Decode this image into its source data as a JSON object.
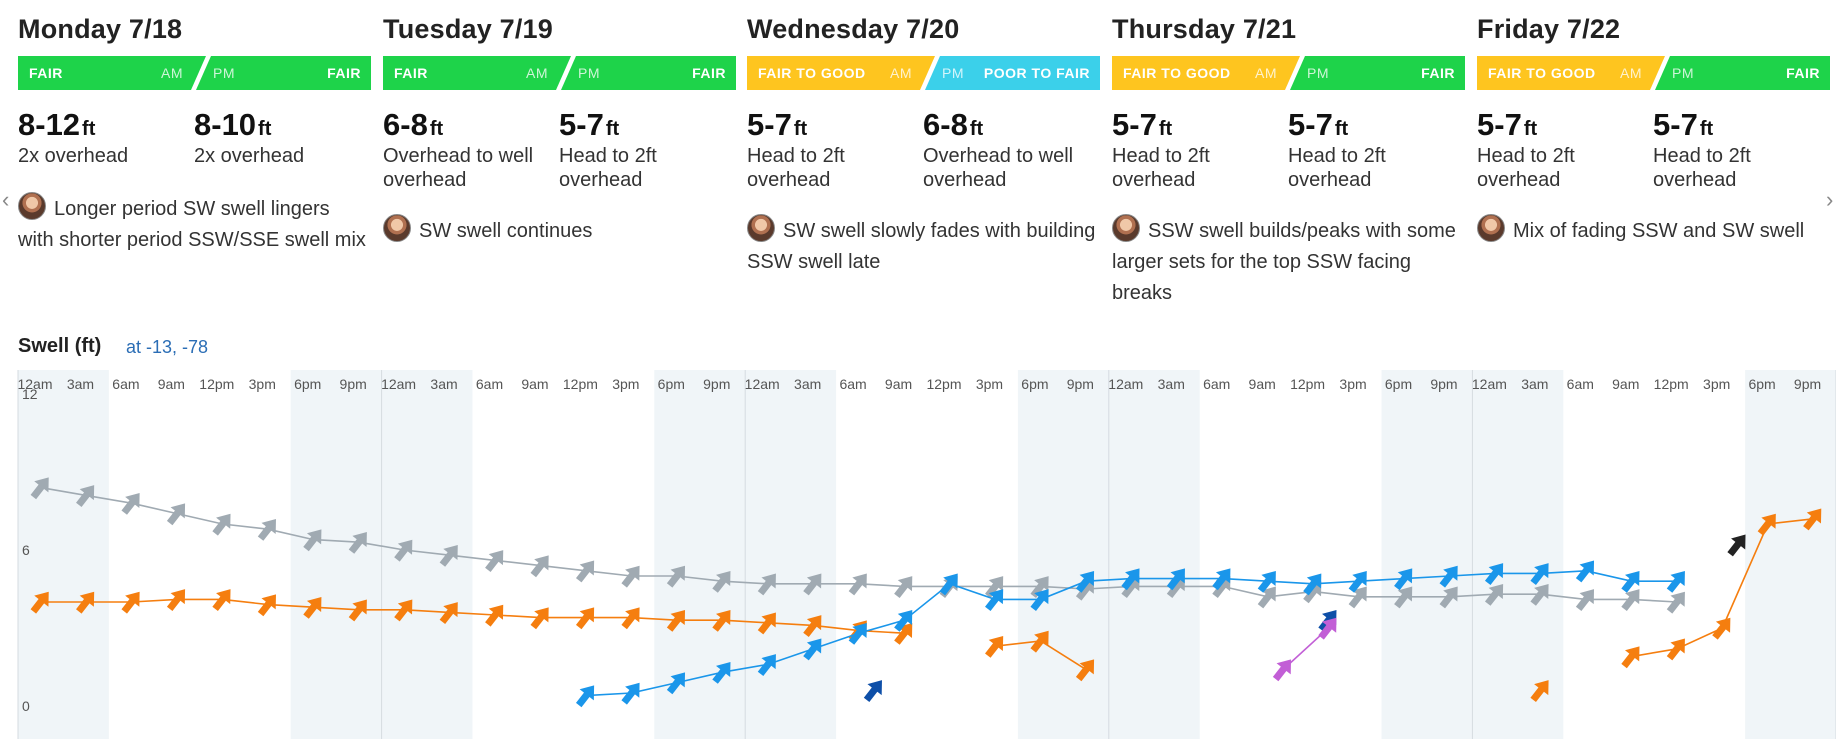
{
  "days": [
    {
      "title": "Monday 7/18",
      "am": {
        "rating": "FAIR",
        "color": "#1ed34a",
        "height": "8-12",
        "desc": "2x overhead"
      },
      "pm": {
        "rating": "FAIR",
        "color": "#1ed34a",
        "height": "8-10",
        "desc": "2x overhead"
      },
      "note": "Longer period SW swell lingers with shorter period SSW/SSE swell mix"
    },
    {
      "title": "Tuesday 7/19",
      "am": {
        "rating": "FAIR",
        "color": "#1ed34a",
        "height": "6-8",
        "desc": "Overhead to well overhead"
      },
      "pm": {
        "rating": "FAIR",
        "color": "#1ed34a",
        "height": "5-7",
        "desc": "Head to 2ft overhead"
      },
      "note": "SW swell continues"
    },
    {
      "title": "Wednesday 7/20",
      "am": {
        "rating": "FAIR TO GOOD",
        "color": "#fec51f",
        "height": "5-7",
        "desc": "Head to 2ft overhead"
      },
      "pm": {
        "rating": "POOR TO FAIR",
        "color": "#3bd0ea",
        "height": "6-8",
        "desc": "Overhead to well overhead"
      },
      "note": "SW swell slowly fades with building SSW swell late"
    },
    {
      "title": "Thursday 7/21",
      "am": {
        "rating": "FAIR TO GOOD",
        "color": "#fec51f",
        "height": "5-7",
        "desc": "Head to 2ft overhead"
      },
      "pm": {
        "rating": "FAIR",
        "color": "#1ed34a",
        "height": "5-7",
        "desc": "Head to 2ft overhead"
      },
      "note": "SSW swell builds/peaks with some larger sets for the top SSW facing breaks"
    },
    {
      "title": "Friday 7/22",
      "am": {
        "rating": "FAIR TO GOOD",
        "color": "#fec51f",
        "height": "5-7",
        "desc": "Head to 2ft overhead"
      },
      "pm": {
        "rating": "FAIR",
        "color": "#1ed34a",
        "height": "5-7",
        "desc": "Head to 2ft overhead"
      },
      "note": "Mix of fading SSW and SW swell"
    }
  ],
  "labels": {
    "am": "AM",
    "pm": "PM",
    "unit": "ft"
  },
  "swell": {
    "title": "Swell (ft)",
    "location": "at -13, -78"
  },
  "chart_data": {
    "type": "scatter",
    "title": "Swell (ft)",
    "ylabel": "",
    "ylim": [
      0,
      12
    ],
    "yticks": [
      0,
      6,
      12
    ],
    "x_tick_labels": [
      "12am",
      "3am",
      "6am",
      "9am",
      "12pm",
      "3pm",
      "6pm",
      "9pm"
    ],
    "x_range_hours": [
      0,
      120
    ],
    "series": [
      {
        "color": "#a0aab2",
        "line": true,
        "points": [
          [
            1.5,
            8.4
          ],
          [
            4.5,
            8.1
          ],
          [
            7.5,
            7.8
          ],
          [
            10.5,
            7.4
          ],
          [
            13.5,
            7.0
          ],
          [
            16.5,
            6.8
          ],
          [
            19.5,
            6.4
          ],
          [
            22.5,
            6.3
          ],
          [
            25.5,
            6.0
          ],
          [
            28.5,
            5.8
          ],
          [
            31.5,
            5.6
          ],
          [
            34.5,
            5.4
          ],
          [
            37.5,
            5.2
          ],
          [
            40.5,
            5.0
          ],
          [
            43.5,
            5.0
          ],
          [
            46.5,
            4.8
          ],
          [
            49.5,
            4.7
          ],
          [
            52.5,
            4.7
          ],
          [
            55.5,
            4.7
          ],
          [
            58.5,
            4.6
          ],
          [
            61.5,
            4.6
          ],
          [
            64.5,
            4.6
          ],
          [
            67.5,
            4.6
          ],
          [
            70.5,
            4.5
          ],
          [
            73.5,
            4.6
          ],
          [
            76.5,
            4.6
          ],
          [
            79.5,
            4.6
          ],
          [
            82.5,
            4.2
          ],
          [
            85.5,
            4.4
          ],
          [
            88.5,
            4.2
          ],
          [
            91.5,
            4.2
          ],
          [
            94.5,
            4.2
          ],
          [
            97.5,
            4.3
          ],
          [
            100.5,
            4.3
          ],
          [
            103.5,
            4.1
          ],
          [
            106.5,
            4.1
          ],
          [
            109.5,
            4.0
          ]
        ]
      },
      {
        "color": "#f57e0f",
        "line": true,
        "points": [
          [
            1.5,
            4.0
          ],
          [
            4.5,
            4.0
          ],
          [
            7.5,
            4.0
          ],
          [
            10.5,
            4.1
          ],
          [
            13.5,
            4.1
          ],
          [
            16.5,
            3.9
          ],
          [
            19.5,
            3.8
          ],
          [
            22.5,
            3.7
          ],
          [
            25.5,
            3.7
          ],
          [
            28.5,
            3.6
          ],
          [
            31.5,
            3.5
          ],
          [
            34.5,
            3.4
          ],
          [
            37.5,
            3.4
          ],
          [
            40.5,
            3.4
          ],
          [
            43.5,
            3.3
          ],
          [
            46.5,
            3.3
          ],
          [
            49.5,
            3.2
          ],
          [
            52.5,
            3.1
          ],
          [
            55.5,
            2.9
          ],
          [
            58.5,
            2.8
          ]
        ]
      },
      {
        "color": "#f57e0f",
        "line": true,
        "points": [
          [
            64.5,
            2.3
          ],
          [
            67.5,
            2.5
          ],
          [
            70.5,
            1.4
          ]
        ]
      },
      {
        "color": "#f57e0f",
        "line": false,
        "points": [
          [
            100.5,
            0.6
          ]
        ]
      },
      {
        "color": "#f57e0f",
        "line": true,
        "points": [
          [
            106.5,
            1.9
          ],
          [
            109.5,
            2.2
          ],
          [
            112.5,
            3.0
          ],
          [
            115.5,
            7.0
          ],
          [
            118.5,
            7.2
          ]
        ]
      },
      {
        "color": "#1a96ea",
        "line": true,
        "points": [
          [
            37.5,
            0.4
          ],
          [
            40.5,
            0.5
          ],
          [
            43.5,
            0.9
          ],
          [
            46.5,
            1.3
          ],
          [
            49.5,
            1.6
          ],
          [
            52.5,
            2.2
          ],
          [
            55.5,
            2.8
          ],
          [
            58.5,
            3.3
          ],
          [
            61.5,
            4.7
          ],
          [
            64.5,
            4.1
          ],
          [
            67.5,
            4.1
          ],
          [
            70.5,
            4.8
          ],
          [
            73.5,
            4.9
          ],
          [
            76.5,
            4.9
          ],
          [
            79.5,
            4.9
          ],
          [
            82.5,
            4.8
          ],
          [
            85.5,
            4.7
          ],
          [
            88.5,
            4.8
          ],
          [
            91.5,
            4.9
          ],
          [
            94.5,
            5.0
          ],
          [
            97.5,
            5.1
          ],
          [
            100.5,
            5.1
          ],
          [
            103.5,
            5.2
          ],
          [
            106.5,
            4.8
          ],
          [
            109.5,
            4.8
          ]
        ]
      },
      {
        "color": "#0e4fa8",
        "line": false,
        "points": [
          [
            56.5,
            0.6
          ]
        ]
      },
      {
        "color": "#0e4fa8",
        "line": false,
        "points": [
          [
            86.5,
            3.3
          ]
        ]
      },
      {
        "color": "#c25fd6",
        "line": true,
        "points": [
          [
            83.5,
            1.4
          ],
          [
            86.5,
            3.0
          ]
        ]
      },
      {
        "color": "#222222",
        "line": false,
        "points": [
          [
            113.5,
            6.2
          ]
        ]
      }
    ]
  }
}
